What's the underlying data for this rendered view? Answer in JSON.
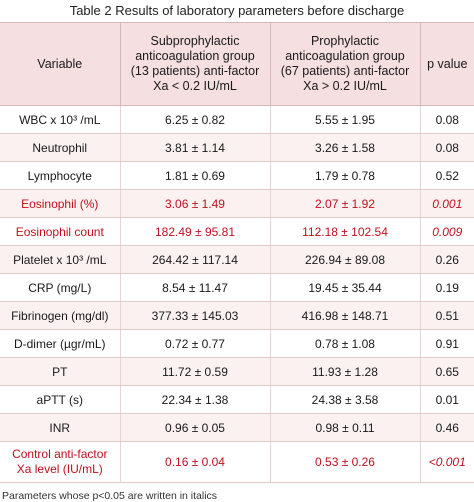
{
  "caption": "Table 2 Results of laboratory parameters before discharge",
  "headers": {
    "variable": "Variable",
    "sub_group": "Subprophylactic anticoagulation group (13 patients) anti-factor Xa < 0.2 IU/mL",
    "pro_group": "Prophylactic anticoagulation group (67 patients) anti-factor Xa > 0.2 IU/mL",
    "p_value": "p value"
  },
  "rows": [
    {
      "variable": "WBC x 10³ /mL",
      "sub": "6.25 ± 0.82",
      "pro": "5.55 ± 1.95",
      "p": "0.08"
    },
    {
      "variable": "Neutrophil",
      "sub": "3.81 ± 1.14",
      "pro": "3.26 ± 1.58",
      "p": "0.08"
    },
    {
      "variable": "Lymphocyte",
      "sub": "1.81 ± 0.69",
      "pro": "1.79 ± 0.78",
      "p": "0.52"
    },
    {
      "variable": "Eosinophil (%)",
      "sub": "3.06 ± 1.49",
      "pro": "2.07 ± 1.92",
      "p": "0.001"
    },
    {
      "variable": "Eosinophil count",
      "sub": "182.49 ± 95.81",
      "pro": "112.18 ± 102.54",
      "p": "0.009"
    },
    {
      "variable": "Platelet x 10³ /mL",
      "sub": "264.42 ± 117.14",
      "pro": "226.94 ± 89.08",
      "p": "0.26"
    },
    {
      "variable": "CRP (mg/L)",
      "sub": "8.54 ± 11.47",
      "pro": "19.45 ± 35.44",
      "p": "0.19"
    },
    {
      "variable": "Fibrinogen (mg/dl)",
      "sub": "377.33 ± 145.03",
      "pro": "416.98 ± 148.71",
      "p": "0.51"
    },
    {
      "variable": "D-dimer (µgr/mL)",
      "sub": "0.72 ± 0.77",
      "pro": "0.78 ± 1.08",
      "p": "0.91"
    },
    {
      "variable": "PT",
      "sub": "11.72 ± 0.59",
      "pro": "11.93 ± 1.28",
      "p": "0.65"
    },
    {
      "variable": "aPTT (s)",
      "sub": "22.34 ± 1.38",
      "pro": "24.38 ± 3.58",
      "p": "0.01"
    },
    {
      "variable": "INR",
      "sub": "0.96 ± 0.05",
      "pro": "0.98 ± 0.11",
      "p": "0.46"
    },
    {
      "variable": "Control anti-factor Xa level (IU/mL)",
      "sub": "0.16 ± 0.04",
      "pro": "0.53 ± 0.26",
      "p": "<0.001"
    }
  ],
  "footnote": "Parameters whose p<0.05 are written in italics",
  "colors": {
    "highlight_red": "#c0101e",
    "header_bg": "#f5dfe0"
  }
}
